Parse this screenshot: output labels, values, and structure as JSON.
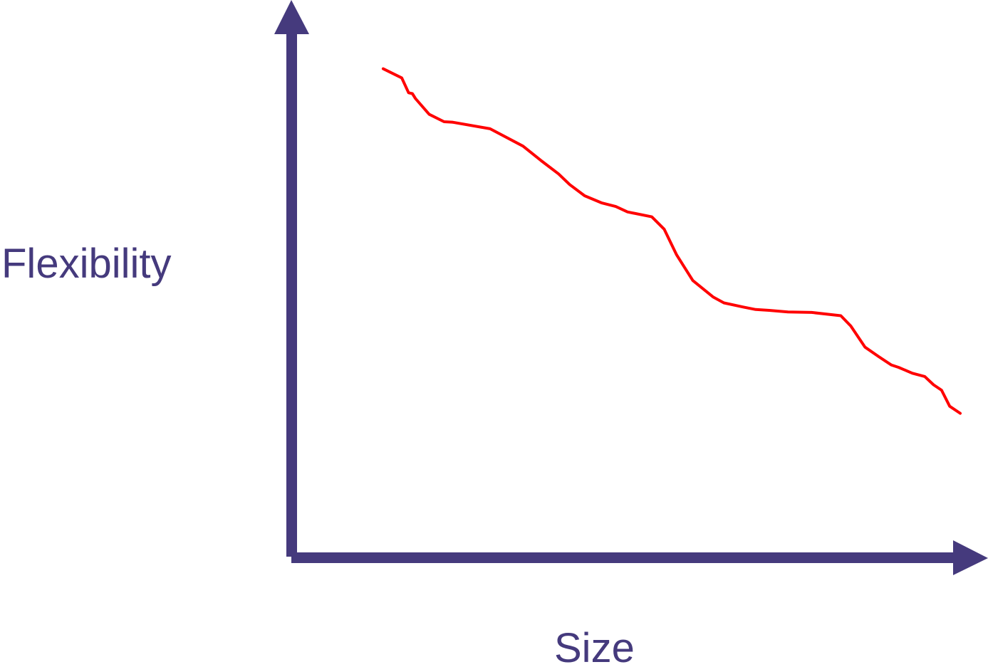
{
  "colors": {
    "axis": "#453a7d",
    "curve": "#ff0000",
    "background": "#ffffff"
  },
  "chart_data": {
    "type": "line",
    "title": "",
    "xlabel": "Size",
    "ylabel": "Flexibility",
    "xlim": [
      0,
      100
    ],
    "ylim": [
      0,
      100
    ],
    "grid": false,
    "legend": "none",
    "ticks": false,
    "series": [
      {
        "x": [
          7.2,
          10.2,
          11.3,
          11.9,
          12.4,
          14.6,
          17.0,
          18.3,
          24.4,
          29.7,
          32.6,
          35.4,
          37.2,
          39.6,
          42.3,
          44.6,
          46.5,
          50.4,
          52.4,
          54.4,
          57.0,
          60.3,
          62.0,
          65.1,
          67.1,
          69.3,
          72.3,
          76.1,
          80.8,
          82.4,
          84.7,
          86.9,
          88.9,
          90.1,
          92.3,
          94.3,
          95.7,
          97.0,
          98.3,
          100.0
        ],
        "y": [
          99.2,
          97.0,
          93.4,
          93.2,
          92.0,
          88.2,
          86.4,
          86.3,
          84.7,
          80.5,
          77.0,
          73.8,
          71.2,
          68.5,
          66.8,
          65.9,
          64.6,
          63.4,
          60.4,
          54.2,
          48.0,
          44.0,
          42.6,
          41.6,
          41.0,
          40.8,
          40.4,
          40.3,
          39.5,
          37.0,
          31.9,
          29.6,
          27.6,
          27.0,
          25.6,
          24.8,
          22.8,
          21.5,
          17.6,
          15.9
        ]
      }
    ]
  }
}
